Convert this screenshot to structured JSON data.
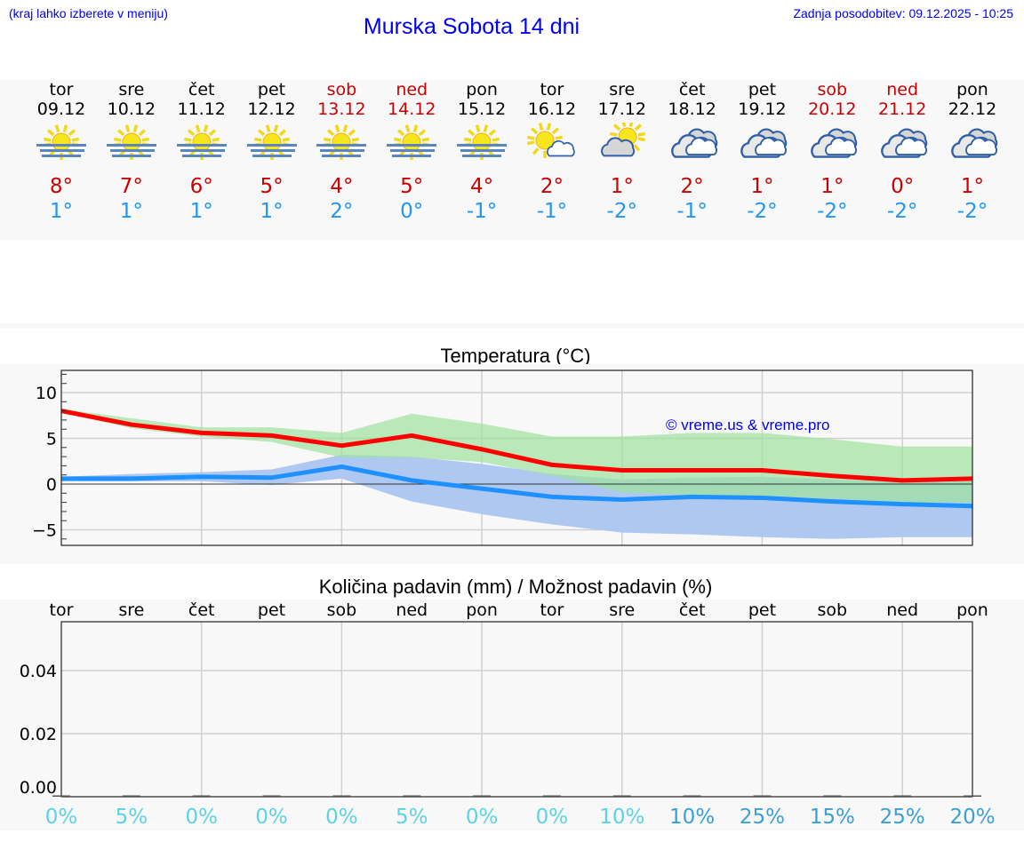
{
  "header": {
    "hint": "(kraj lahko izberete v meniju)",
    "title": "Murska Sobota 14 dni",
    "updated": "Zadnja posodobitev: 09.12.2025 - 10:25"
  },
  "days": [
    {
      "name": "tor",
      "date": "09.12",
      "weekend": false,
      "icon": "sun-fog-icon",
      "max": "8°",
      "min": "1°"
    },
    {
      "name": "sre",
      "date": "10.12",
      "weekend": false,
      "icon": "sun-fog-icon",
      "max": "7°",
      "min": "1°"
    },
    {
      "name": "čet",
      "date": "11.12",
      "weekend": false,
      "icon": "sun-fog-icon",
      "max": "6°",
      "min": "1°"
    },
    {
      "name": "pet",
      "date": "12.12",
      "weekend": false,
      "icon": "sun-fog-icon",
      "max": "5°",
      "min": "1°"
    },
    {
      "name": "sob",
      "date": "13.12",
      "weekend": true,
      "icon": "sun-fog-icon",
      "max": "4°",
      "min": "2°"
    },
    {
      "name": "ned",
      "date": "14.12",
      "weekend": true,
      "icon": "sun-fog-icon",
      "max": "5°",
      "min": "0°"
    },
    {
      "name": "pon",
      "date": "15.12",
      "weekend": false,
      "icon": "sun-fog-icon",
      "max": "4°",
      "min": "-1°"
    },
    {
      "name": "tor",
      "date": "16.12",
      "weekend": false,
      "icon": "sun-small-cloud-icon",
      "max": "2°",
      "min": "-1°"
    },
    {
      "name": "sre",
      "date": "17.12",
      "weekend": false,
      "icon": "partly-cloudy-icon",
      "max": "1°",
      "min": "-2°"
    },
    {
      "name": "čet",
      "date": "18.12",
      "weekend": false,
      "icon": "cloudy-icon",
      "max": "2°",
      "min": "-1°"
    },
    {
      "name": "pet",
      "date": "19.12",
      "weekend": false,
      "icon": "cloudy-icon",
      "max": "1°",
      "min": "-2°"
    },
    {
      "name": "sob",
      "date": "20.12",
      "weekend": true,
      "icon": "cloudy-icon",
      "max": "1°",
      "min": "-2°"
    },
    {
      "name": "ned",
      "date": "21.12",
      "weekend": true,
      "icon": "cloudy-icon",
      "max": "0°",
      "min": "-2°"
    },
    {
      "name": "pon",
      "date": "22.12",
      "weekend": false,
      "icon": "cloudy-icon",
      "max": "1°",
      "min": "-2°"
    }
  ],
  "temp_chart": {
    "title": "Temperatura (°C)",
    "watermark": "© vreme.us & vreme.pro",
    "yticks": [
      "10",
      "5",
      "0",
      "−5"
    ]
  },
  "precip_chart": {
    "title": "Količina padavin (mm) / Možnost padavin (%)",
    "day_labels": [
      "tor",
      "sre",
      "čet",
      "pet",
      "sob",
      "ned",
      "pon",
      "tor",
      "sre",
      "čet",
      "pet",
      "sob",
      "ned",
      "pon"
    ],
    "yticks": [
      "0.04",
      "0.02",
      "0.00"
    ],
    "chances": [
      "0%",
      "5%",
      "0%",
      "0%",
      "0%",
      "5%",
      "0%",
      "0%",
      "10%",
      "10%",
      "25%",
      "15%",
      "25%",
      "20%"
    ]
  },
  "colors": {
    "max_line": "#ff0000",
    "min_line": "#1e90ff",
    "max_band": "#aeeaae",
    "min_band": "#aec8f2",
    "overlap_band": "#7ec8a8",
    "chance_low": "#5bd3e6",
    "chance_high": "#3a9fd6"
  },
  "chart_data": [
    {
      "type": "line",
      "title": "Temperatura (°C)",
      "xlabel": "",
      "ylabel": "°C",
      "categories": [
        "09.12",
        "10.12",
        "11.12",
        "12.12",
        "13.12",
        "14.12",
        "15.12",
        "16.12",
        "17.12",
        "18.12",
        "19.12",
        "20.12",
        "21.12",
        "22.12"
      ],
      "ylim": [
        -6.8,
        12.5
      ],
      "grid": true,
      "series": [
        {
          "name": "max",
          "color": "#ff0000",
          "values": [
            8.0,
            6.5,
            5.6,
            5.3,
            4.2,
            5.3,
            3.8,
            2.1,
            1.5,
            1.5,
            1.5,
            0.9,
            0.4,
            0.6
          ]
        },
        {
          "name": "min",
          "color": "#1e90ff",
          "values": [
            0.6,
            0.6,
            0.8,
            0.7,
            1.9,
            0.4,
            -0.5,
            -1.4,
            -1.7,
            -1.4,
            -1.5,
            -1.9,
            -2.2,
            -2.4
          ]
        },
        {
          "name": "max_range_upper",
          "values": [
            8.2,
            7.2,
            6.2,
            6.2,
            5.6,
            7.7,
            6.6,
            5.2,
            5.2,
            5.6,
            5.6,
            4.9,
            4.1,
            4.1
          ]
        },
        {
          "name": "max_range_lower",
          "values": [
            7.8,
            6.1,
            5.2,
            4.6,
            2.9,
            2.9,
            2.4,
            0.9,
            -0.9,
            -1.2,
            -1.4,
            -1.6,
            -2.0,
            -2.0
          ]
        },
        {
          "name": "min_range_upper",
          "values": [
            0.8,
            1.1,
            1.3,
            1.6,
            3.2,
            3.0,
            2.2,
            1.1,
            0.5,
            0.7,
            0.8,
            0.5,
            0.2,
            0.3
          ]
        },
        {
          "name": "min_range_lower",
          "values": [
            0.3,
            0.3,
            0.3,
            -0.1,
            0.6,
            -1.9,
            -3.3,
            -4.4,
            -5.3,
            -5.5,
            -5.8,
            -6.0,
            -5.8,
            -5.8
          ]
        }
      ],
      "annotations": [
        "© vreme.us & vreme.pro"
      ]
    },
    {
      "type": "bar",
      "title": "Količina padavin (mm) / Možnost padavin (%)",
      "categories": [
        "tor",
        "sre",
        "čet",
        "pet",
        "sob",
        "ned",
        "pon",
        "tor",
        "sre",
        "čet",
        "pet",
        "sob",
        "ned",
        "pon"
      ],
      "series": [
        {
          "name": "padavine (mm)",
          "values": [
            0,
            0,
            0,
            0,
            0,
            0,
            0,
            0,
            0,
            0,
            0,
            0,
            0,
            0
          ]
        },
        {
          "name": "možnost (%)",
          "values": [
            0,
            5,
            0,
            0,
            0,
            5,
            0,
            0,
            10,
            10,
            25,
            15,
            25,
            20
          ]
        }
      ],
      "ylim": [
        -0.003,
        0.055
      ],
      "yticks": [
        0.0,
        0.02,
        0.04
      ],
      "grid": true
    }
  ]
}
